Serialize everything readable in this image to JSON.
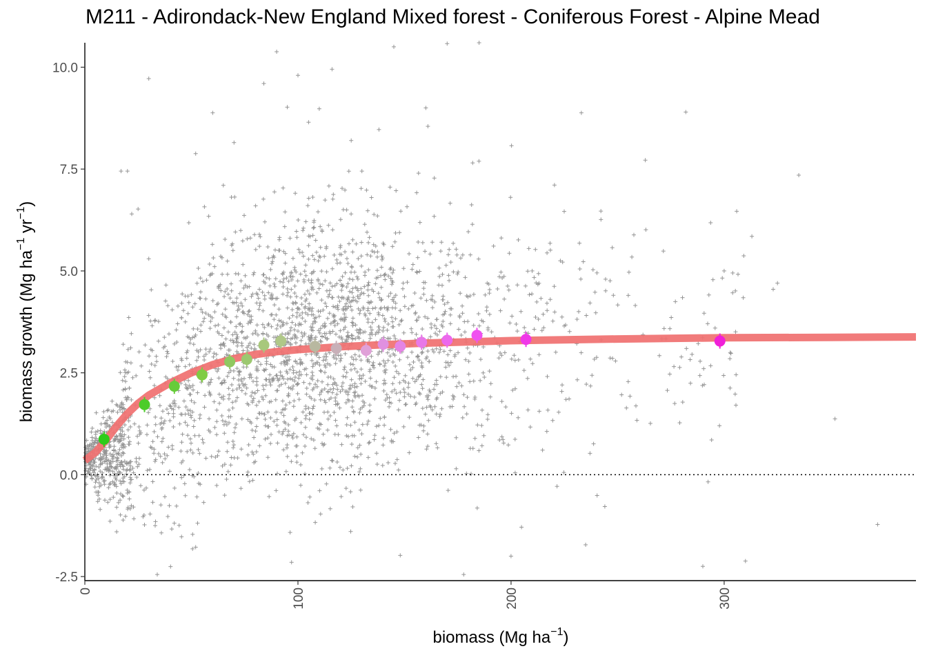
{
  "chart_data": {
    "type": "scatter",
    "title": "M211 - Adirondack-New England Mixed forest - Coniferous Forest - Alpine Mead",
    "xlabel": {
      "main": "biomass (Mg ha",
      "sup": "−1",
      "end": ")"
    },
    "ylabel": {
      "main": "biomass growth (Mg ha",
      "sup1": "−1",
      "mid": " yr",
      "sup2": "−1",
      "end": ")"
    },
    "xlim": [
      0,
      390
    ],
    "ylim": [
      -2.6,
      10.6
    ],
    "x_ticks": [
      {
        "value": 0,
        "label": "0"
      },
      {
        "value": 100,
        "label": "100"
      },
      {
        "value": 200,
        "label": "200"
      },
      {
        "value": 300,
        "label": "300"
      }
    ],
    "y_ticks": [
      {
        "value": -2.5,
        "label": "-2.5"
      },
      {
        "value": 0,
        "label": "0.0"
      },
      {
        "value": 2.5,
        "label": "2.5"
      },
      {
        "value": 5,
        "label": "5.0"
      },
      {
        "value": 7.5,
        "label": "7.5"
      },
      {
        "value": 10,
        "label": "10.0"
      }
    ],
    "reference_line": {
      "y": 0,
      "style": "dotted",
      "color": "#000000"
    },
    "grid": false,
    "legend": "none",
    "colors": {
      "points": "#000000",
      "fit": "#f07070"
    },
    "fit_curve": {
      "color": "#f07070",
      "points": [
        [
          0,
          0.35
        ],
        [
          5,
          0.55
        ],
        [
          10,
          0.85
        ],
        [
          15,
          1.2
        ],
        [
          20,
          1.5
        ],
        [
          25,
          1.75
        ],
        [
          30,
          1.95
        ],
        [
          40,
          2.25
        ],
        [
          50,
          2.5
        ],
        [
          60,
          2.7
        ],
        [
          70,
          2.85
        ],
        [
          80,
          2.95
        ],
        [
          90,
          3.02
        ],
        [
          100,
          3.07
        ],
        [
          120,
          3.14
        ],
        [
          140,
          3.19
        ],
        [
          160,
          3.23
        ],
        [
          180,
          3.26
        ],
        [
          200,
          3.29
        ],
        [
          250,
          3.33
        ],
        [
          300,
          3.36
        ],
        [
          350,
          3.37
        ],
        [
          390,
          3.38
        ]
      ]
    },
    "binned_means": [
      {
        "x": 9,
        "y": 0.87,
        "color": "#2ecc1a"
      },
      {
        "x": 28,
        "y": 1.72,
        "color": "#4ccc2a"
      },
      {
        "x": 42,
        "y": 2.17,
        "color": "#66cc3a"
      },
      {
        "x": 55,
        "y": 2.45,
        "color": "#80cc44"
      },
      {
        "x": 68,
        "y": 2.77,
        "color": "#90c860"
      },
      {
        "x": 76,
        "y": 2.83,
        "color": "#9cc870"
      },
      {
        "x": 84,
        "y": 3.18,
        "color": "#a8c87c"
      },
      {
        "x": 92,
        "y": 3.28,
        "color": "#b0c888"
      },
      {
        "x": 108,
        "y": 3.15,
        "color": "#b8b8a0"
      },
      {
        "x": 118,
        "y": 3.1,
        "color": "#c8b0b8"
      },
      {
        "x": 132,
        "y": 3.05,
        "color": "#e0a0d8"
      },
      {
        "x": 140,
        "y": 3.2,
        "color": "#e090e0"
      },
      {
        "x": 148,
        "y": 3.15,
        "color": "#e484e4"
      },
      {
        "x": 158,
        "y": 3.25,
        "color": "#e878e8"
      },
      {
        "x": 170,
        "y": 3.3,
        "color": "#ec68ec"
      },
      {
        "x": 184,
        "y": 3.42,
        "color": "#f050f0"
      },
      {
        "x": 207,
        "y": 3.32,
        "color": "#f038e8"
      },
      {
        "x": 298,
        "y": 3.28,
        "color": "#f020d8"
      }
    ],
    "scatter": {
      "marker": "plus",
      "color": "#000000",
      "count": 5600,
      "outliers": [
        [
          30,
          9.72
        ],
        [
          90,
          10.38
        ],
        [
          100,
          9.8
        ],
        [
          116,
          9.95
        ],
        [
          84,
          9.6
        ],
        [
          60,
          8.88
        ],
        [
          95,
          9.02
        ],
        [
          105,
          8.65
        ],
        [
          160,
          9.0
        ],
        [
          161,
          8.55
        ],
        [
          138,
          8.47
        ],
        [
          145,
          10.5
        ],
        [
          170,
          10.58
        ],
        [
          185,
          10.6
        ],
        [
          233,
          8.88
        ],
        [
          282,
          8.9
        ],
        [
          263,
          7.72
        ],
        [
          335,
          7.35
        ],
        [
          17,
          7.45
        ],
        [
          20,
          7.45
        ],
        [
          22,
          6.4
        ],
        [
          25,
          6.52
        ],
        [
          52,
          7.88
        ],
        [
          65,
          7.1
        ],
        [
          70,
          8.15
        ],
        [
          110,
          8.98
        ],
        [
          125,
          8.2
        ],
        [
          130,
          7.45
        ],
        [
          164,
          7.28
        ],
        [
          182,
          7.65
        ],
        [
          352,
          1.37
        ],
        [
          372,
          -1.22
        ],
        [
          310,
          -2.12
        ],
        [
          290,
          -2.25
        ],
        [
          97,
          -2.15
        ],
        [
          52,
          -1.78
        ],
        [
          148,
          -1.98
        ],
        [
          200,
          -2.0
        ],
        [
          235,
          -1.72
        ],
        [
          15,
          -0.45
        ],
        [
          20,
          -0.45
        ],
        [
          23,
          -1.08
        ],
        [
          28,
          -1.23
        ],
        [
          33,
          -1.25
        ],
        [
          43,
          -0.77
        ],
        [
          244,
          -0.78
        ],
        [
          325,
          4.7
        ],
        [
          323,
          4.55
        ],
        [
          313,
          5.85
        ],
        [
          300,
          5.0
        ],
        [
          304,
          4.95
        ],
        [
          255,
          4.4
        ],
        [
          30,
          5.3
        ],
        [
          18,
          3.2
        ]
      ]
    }
  }
}
